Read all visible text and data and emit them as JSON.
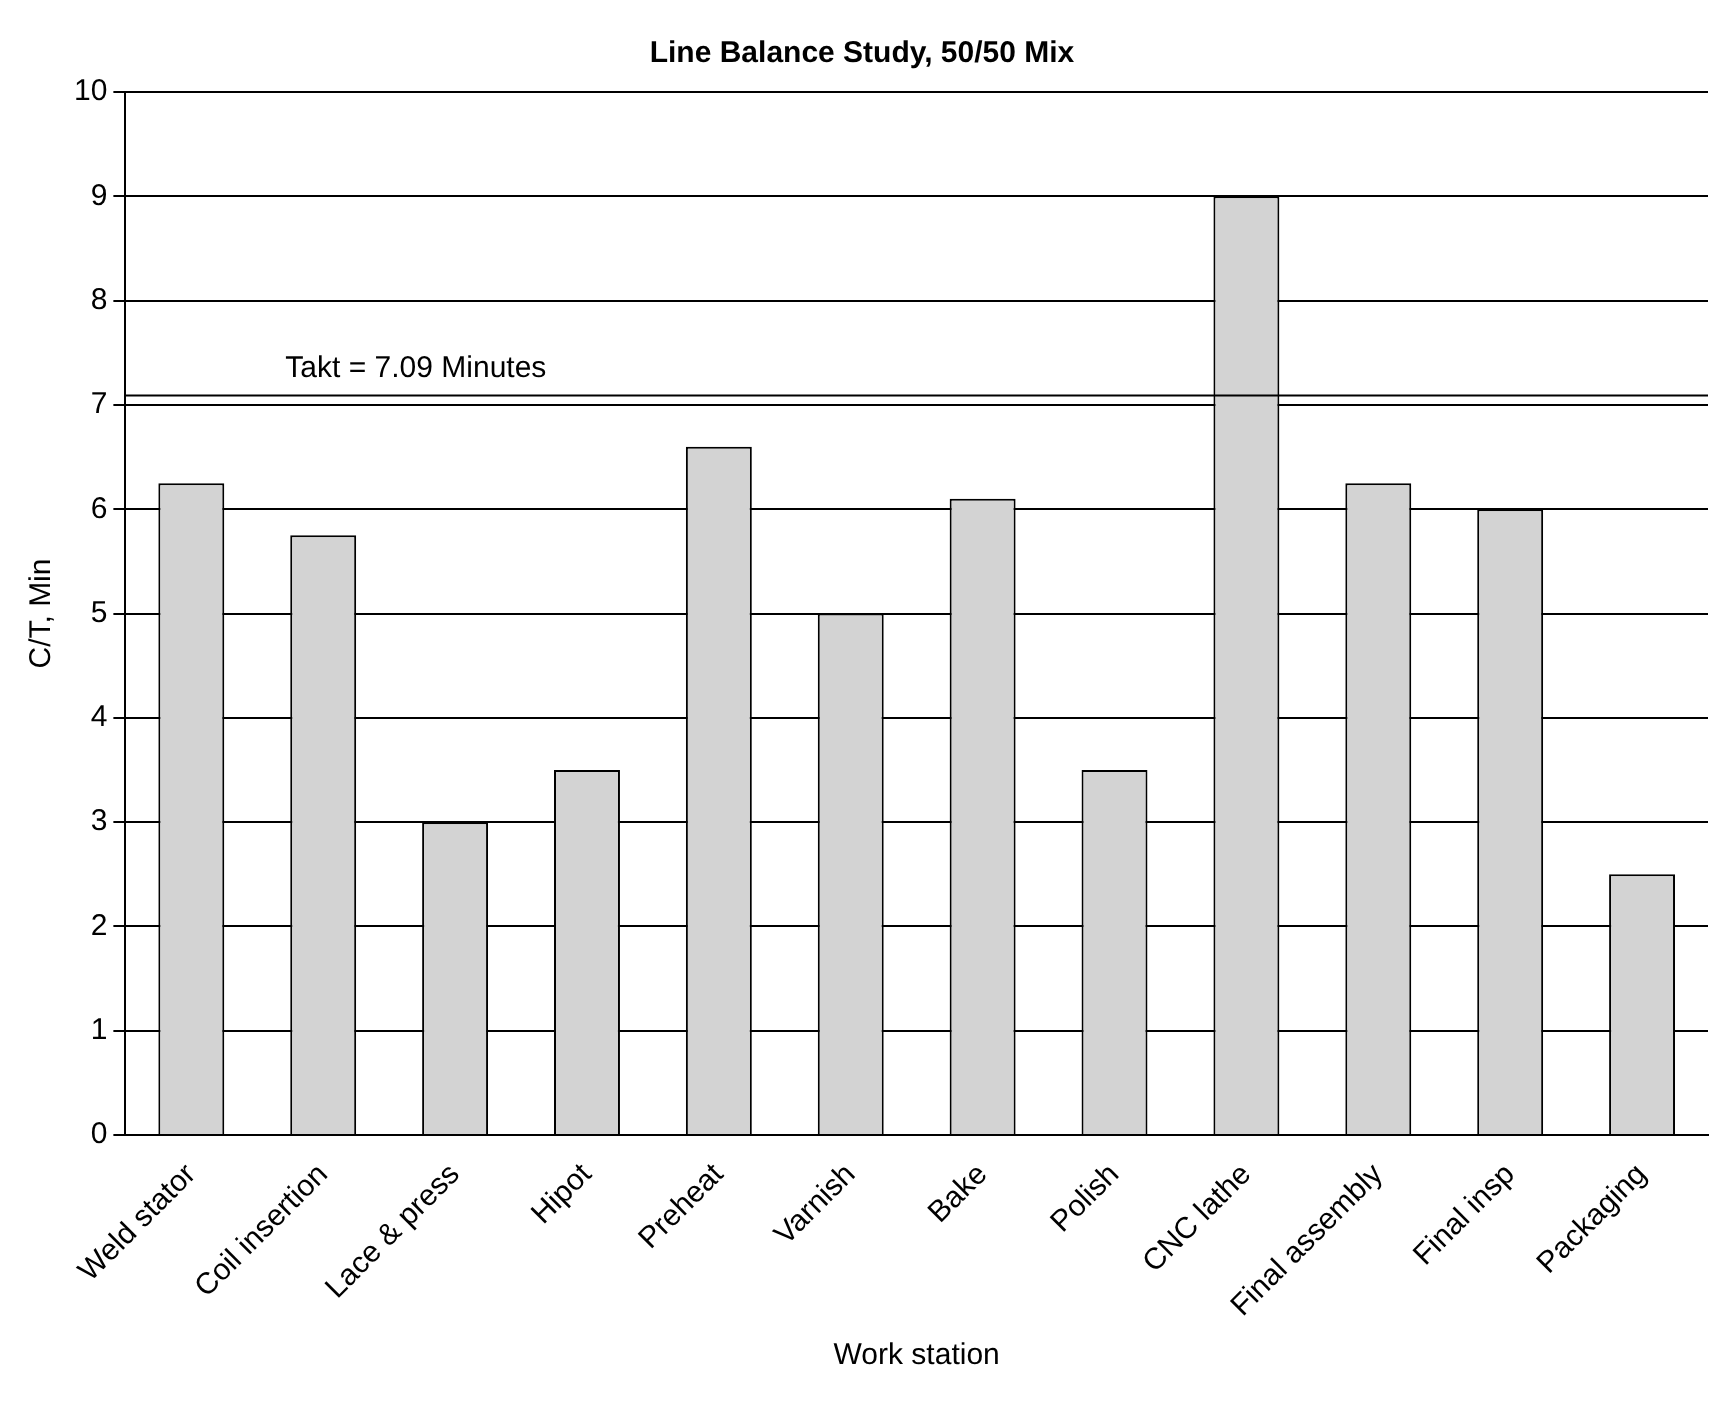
{
  "chart_data": {
    "type": "bar",
    "title": "Line Balance Study, 50/50 Mix",
    "xlabel": "Work station",
    "ylabel": "C/T, Min",
    "categories": [
      "Weld stator",
      "Coil insertion",
      "Lace & press",
      "Hipot",
      "Preheat",
      "Varnish",
      "Bake",
      "Polish",
      "CNC lathe",
      "Final assembly",
      "Final insp",
      "Packaging"
    ],
    "values": [
      6.25,
      5.75,
      3,
      3.5,
      6.6,
      5,
      6.1,
      3.5,
      9,
      6.25,
      6,
      2.5
    ],
    "color": "#d3d3d3",
    "ylim": [
      0,
      10
    ],
    "yticks": [
      0,
      1,
      2,
      3,
      4,
      5,
      6,
      7,
      8,
      9,
      10
    ],
    "grid": "y",
    "legend": false,
    "ref_lines": [
      {
        "axis": "y",
        "value": 7.09,
        "label": "Takt = 7.09 Minutes",
        "color": "#000000"
      }
    ]
  }
}
